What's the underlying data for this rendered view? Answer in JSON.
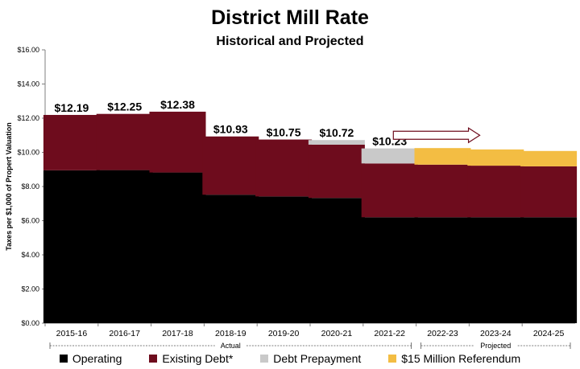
{
  "chart_data": {
    "type": "bar",
    "stacked": true,
    "title": "District Mill Rate",
    "subtitle": "Historical and Projected",
    "ylabel": "Taxes per $1,000 of Propert Valuation",
    "ylim": [
      0,
      16
    ],
    "yticks": [
      "$0.00",
      "$2.00",
      "$4.00",
      "$6.00",
      "$8.00",
      "$10.00",
      "$12.00",
      "$14.00",
      "$16.00"
    ],
    "categories": [
      "2015-16",
      "2016-17",
      "2017-18",
      "2018-19",
      "2019-20",
      "2020-21",
      "2021-22",
      "2022-23",
      "2023-24",
      "2024-25"
    ],
    "series": [
      {
        "name": "Operating",
        "color": "#000000",
        "values": [
          8.95,
          8.96,
          8.82,
          7.52,
          7.42,
          7.33,
          6.2,
          6.2,
          6.2,
          6.2
        ]
      },
      {
        "name": "Existing Debt*",
        "color": "#6e0c1d",
        "values": [
          3.24,
          3.29,
          3.56,
          3.41,
          3.33,
          3.12,
          3.15,
          3.08,
          3.02,
          2.98
        ]
      },
      {
        "name": "Debt Prepayment",
        "color": "#c9c9c9",
        "values": [
          0,
          0,
          0,
          0,
          0,
          0.27,
          0.88,
          0,
          0,
          0
        ]
      },
      {
        "name": "$15 Million Referendum",
        "color": "#f3bd43",
        "values": [
          0,
          0,
          0,
          0,
          0,
          0,
          0,
          0.97,
          0.95,
          0.9
        ]
      }
    ],
    "data_labels": [
      "$12.19",
      "$12.25",
      "$12.38",
      "$10.93",
      "$10.75",
      "$10.72",
      "$10.23",
      "",
      "",
      ""
    ],
    "groups": [
      {
        "label": "Actual",
        "from": 0,
        "to": 6
      },
      {
        "label": "Projected",
        "from": 7,
        "to": 9
      }
    ],
    "grid": false,
    "legend_position": "bottom"
  }
}
